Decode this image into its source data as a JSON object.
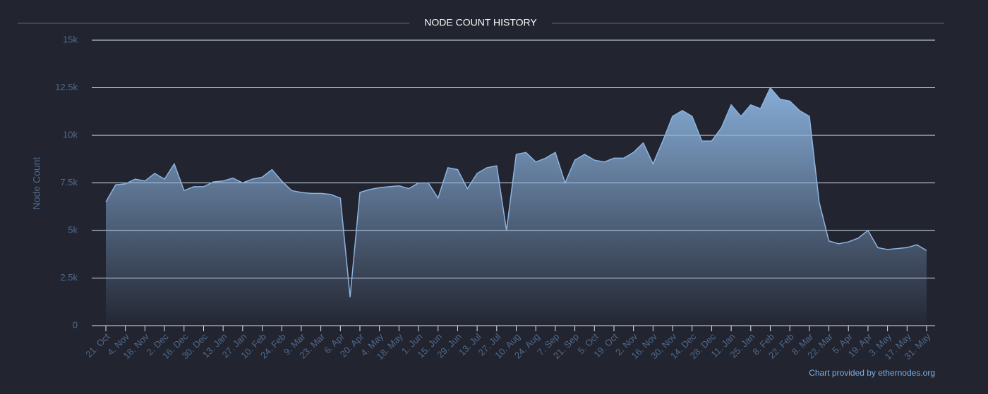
{
  "chart_data": {
    "type": "area",
    "title": "NODE COUNT HISTORY",
    "y_label": "Node Count",
    "credits": "Chart provided by ethernodes.org",
    "categories": [
      "21. Oct",
      null,
      "4. Nov",
      null,
      "18. Nov",
      null,
      "2. Dec",
      null,
      "16. Dec",
      null,
      "30. Dec",
      null,
      "13. Jan",
      null,
      "27. Jan",
      null,
      "10. Feb",
      null,
      "24. Feb",
      null,
      "9. Mar",
      null,
      "23. Mar",
      null,
      "6. Apr",
      null,
      "20. Apr",
      null,
      "4. May",
      null,
      "18. May",
      null,
      "1. Jun",
      null,
      "15. Jun",
      null,
      "29. Jun",
      null,
      "13. Jul",
      null,
      "27. Jul",
      null,
      "10. Aug",
      null,
      "24. Aug",
      null,
      "7. Sep",
      null,
      "21. Sep",
      null,
      "5. Oct",
      null,
      "19. Oct",
      null,
      "2. Nov",
      null,
      "16. Nov",
      null,
      "30. Nov",
      null,
      "14. Dec",
      null,
      "28. Dec",
      null,
      "11. Jan",
      null,
      "25. Jan",
      null,
      "8. Feb",
      null,
      "22. Feb",
      null,
      "8. Mar",
      null,
      "22. Mar",
      null,
      "5. Apr",
      null,
      "19. Apr",
      null,
      "3. May",
      null,
      "17. May",
      null,
      "31. May"
    ],
    "series": [
      {
        "name": "Node Count",
        "color": "#8cb4e0",
        "values": [
          6500,
          7400,
          7450,
          7700,
          7600,
          8000,
          7700,
          8500,
          7100,
          7300,
          7300,
          7550,
          7600,
          7750,
          7500,
          7700,
          7800,
          8200,
          7600,
          7100,
          7000,
          6950,
          6950,
          6900,
          6700,
          1500,
          7000,
          7150,
          7250,
          7300,
          7350,
          7200,
          7500,
          7500,
          6700,
          8300,
          8200,
          7200,
          8000,
          8300,
          8400,
          5000,
          9000,
          9100,
          8600,
          8800,
          9100,
          7500,
          8700,
          9000,
          8700,
          8600,
          8800,
          8800,
          9100,
          9600,
          8500,
          9700,
          11000,
          11300,
          11000,
          9700,
          9700,
          10400,
          11600,
          11000,
          11600,
          11400,
          12500,
          11900,
          11800,
          11300,
          11000,
          6500,
          4450,
          4300,
          4400,
          4600,
          5000,
          4100,
          4000,
          4050,
          4100,
          4250,
          3950
        ]
      }
    ],
    "ylim": [
      0,
      15000
    ],
    "yticks": [
      0,
      {
        "value": 2500,
        "label": "2.5k"
      },
      {
        "value": 5000,
        "label": "5k"
      },
      {
        "value": 7500,
        "label": "7.5k"
      },
      {
        "value": 10000,
        "label": "10k"
      },
      {
        "value": 12500,
        "label": "12.5k"
      },
      {
        "value": 15000,
        "label": "15k"
      }
    ],
    "grid": true
  }
}
